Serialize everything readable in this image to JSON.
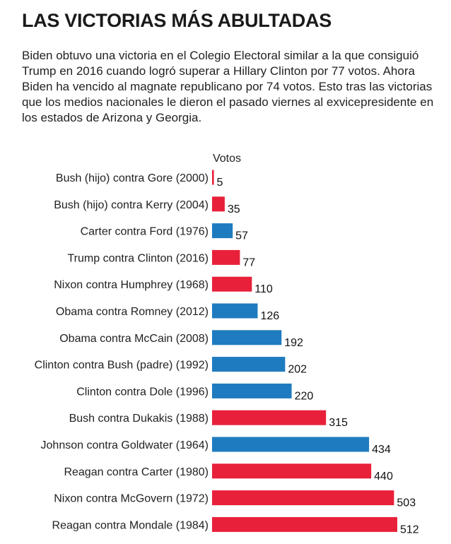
{
  "header": {
    "title": "LAS VICTORIAS MÁS ABULTADAS",
    "subtitle": "Biden obtuvo una victoria en el Colegio Electoral similar a la que consiguió Trump en 2016 cuando logró superar a Hillary Clinton por 77 votos. Ahora Biden ha vencido al magnate republicano por 74 votos. Esto tras las victorias que los medios nacionales le dieron el pasado viernes al exvicepresidente en los estados de Arizona y Georgia."
  },
  "colors": {
    "republican": "#e8203a",
    "democrat": "#1f7bbf"
  },
  "chart_data": {
    "type": "bar",
    "orientation": "horizontal",
    "value_axis_label": "Votos",
    "categories": [
      "Bush (hijo) contra Gore (2000)",
      "Bush (hijo) contra Kerry (2004)",
      "Carter contra Ford (1976)",
      "Trump contra Clinton (2016)",
      "Nixon contra Humphrey (1968)",
      "Obama contra Romney (2012)",
      "Obama contra McCain (2008)",
      "Clinton contra Bush (padre) (1992)",
      "Clinton contra Dole (1996)",
      "Bush contra Dukakis (1988)",
      "Johnson contra Goldwater (1964)",
      "Reagan contra Carter (1980)",
      "Nixon contra McGovern (1972)",
      "Reagan contra Mondale (1984)"
    ],
    "values": [
      5,
      35,
      57,
      77,
      110,
      126,
      192,
      202,
      220,
      315,
      434,
      440,
      503,
      512
    ],
    "value_labels": [
      "5",
      "35",
      "57",
      "77",
      "110",
      "126",
      "192",
      "202",
      "220",
      "315",
      "434",
      "440",
      "503",
      "512"
    ],
    "party": [
      "republican",
      "republican",
      "democrat",
      "republican",
      "republican",
      "democrat",
      "democrat",
      "democrat",
      "democrat",
      "republican",
      "democrat",
      "republican",
      "republican",
      "republican"
    ],
    "xlim": [
      0,
      512
    ],
    "grid": false,
    "legend": "none"
  }
}
